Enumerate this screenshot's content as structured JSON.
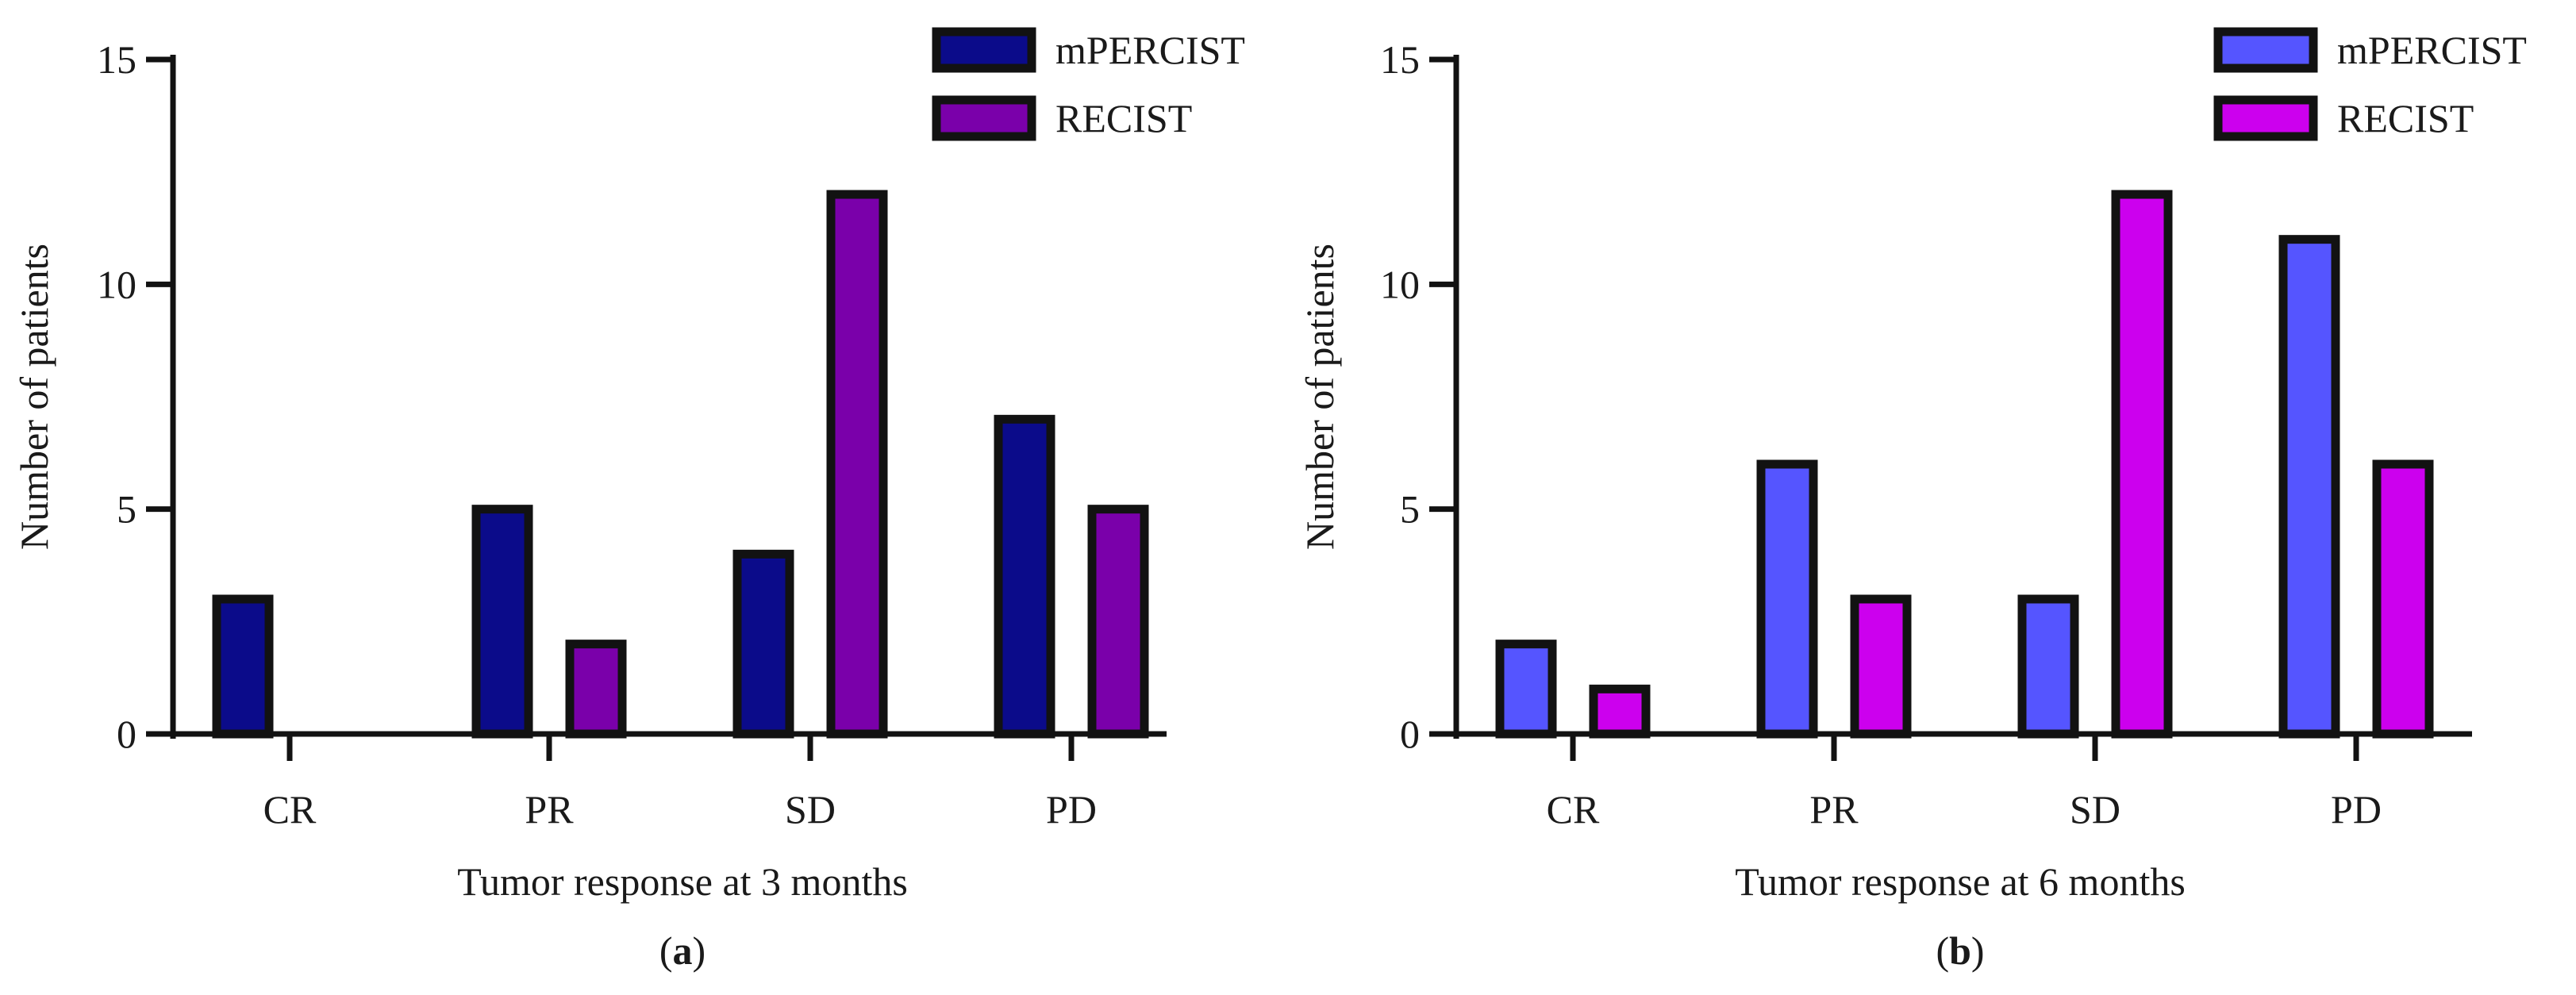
{
  "chart_data": [
    {
      "type": "bar",
      "panel_label": {
        "open": "(",
        "letter": "a",
        "close": ")"
      },
      "xlabel": "Tumor response at 3 months",
      "ylabel": "Number of patients",
      "categories": [
        "CR",
        "PR",
        "SD",
        "PD"
      ],
      "series": [
        {
          "name": "mPERCIST",
          "color": "#0b0b8a",
          "values": [
            3,
            5,
            4,
            7
          ]
        },
        {
          "name": "RECIST",
          "color": "#7a00aa",
          "values": [
            0,
            2,
            12,
            5
          ]
        }
      ],
      "ylim": [
        0,
        15
      ],
      "yticks": [
        "0",
        "5",
        "10",
        "15"
      ],
      "legend_position": "top-right"
    },
    {
      "type": "bar",
      "panel_label": {
        "open": "(",
        "letter": "b",
        "close": ")"
      },
      "xlabel": "Tumor response at 6 months",
      "ylabel": "Number of patients",
      "categories": [
        "CR",
        "PR",
        "SD",
        "PD"
      ],
      "series": [
        {
          "name": "mPERCIST",
          "color": "#5555ff",
          "values": [
            2,
            6,
            3,
            11
          ]
        },
        {
          "name": "RECIST",
          "color": "#cc00ee",
          "values": [
            1,
            3,
            12,
            6
          ]
        }
      ],
      "ylim": [
        0,
        15
      ],
      "yticks": [
        "0",
        "5",
        "10",
        "15"
      ],
      "legend_position": "top-right"
    }
  ]
}
